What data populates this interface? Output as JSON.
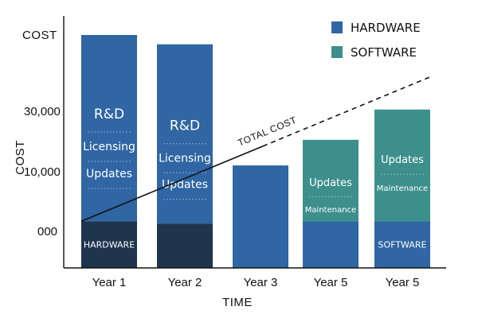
{
  "chart_data": {
    "type": "bar",
    "stacked": true,
    "xlabel": "TIME",
    "ylabel": "COST",
    "ylabel_top": "COST",
    "y_ticks": [
      "30,000",
      "10,000",
      "000"
    ],
    "categories": [
      "Year 1",
      "Year 2",
      "Year 3",
      "Year 5",
      "Year 5"
    ],
    "bars": [
      {
        "category": "Year 1",
        "base_value": 0.2,
        "top_value": 1.0,
        "labels": [
          "R&D",
          "Licensing",
          "Updates"
        ],
        "base_label": "HARDWARE"
      },
      {
        "category": "Year 2",
        "base_value": 0.19,
        "top_value": 0.96,
        "labels": [
          "R&D",
          "Licensing",
          "Updates"
        ],
        "base_label": ""
      },
      {
        "category": "Year 3",
        "base_value": 0.0,
        "top_value": 0.44,
        "labels": [],
        "base_label": ""
      },
      {
        "category": "Year 5",
        "base_value": 0.2,
        "top_value": 0.55,
        "labels": [
          "Updates",
          "Maintenance"
        ],
        "base_label": ""
      },
      {
        "category": "Year 5",
        "base_value": 0.2,
        "top_value": 0.68,
        "labels": [
          "Updates",
          "Maintenance"
        ],
        "base_label": "SOFTWARE"
      }
    ],
    "legend": {
      "position": "top-right",
      "items": [
        {
          "name": "HARDWARE",
          "color": "#2f66a3"
        },
        {
          "name": "SOFTWARE",
          "color": "#3d8f8c"
        }
      ]
    },
    "trend": {
      "label": "TOTAL COST",
      "style": "dashed-extension",
      "start_value": 0.2,
      "end_value": 0.82
    },
    "colors": {
      "hardware": "#2f66a3",
      "software": "#3d8f8c",
      "base_dark": "#1f344d",
      "base_blue": "#2f66a3",
      "base_teal": "#3d8f8c",
      "text": "#111111"
    }
  }
}
